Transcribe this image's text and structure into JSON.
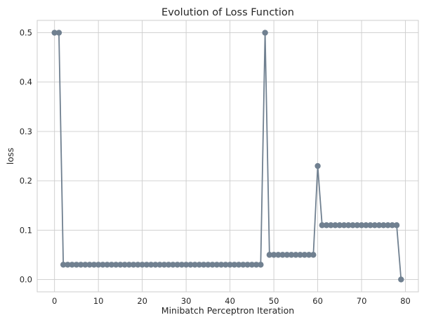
{
  "chart_data": {
    "type": "line",
    "title": "Evolution of Loss Function",
    "xlabel": "Minibatch Perceptron Iteration",
    "ylabel": "loss",
    "xlim": [
      -3.95,
      82.95
    ],
    "ylim": [
      -0.025,
      0.525
    ],
    "xticks": [
      0,
      10,
      20,
      30,
      40,
      50,
      60,
      70,
      80
    ],
    "yticks": [
      0.0,
      0.1,
      0.2,
      0.3,
      0.4,
      0.5
    ],
    "xtick_labels": [
      "0",
      "10",
      "20",
      "30",
      "40",
      "50",
      "60",
      "70",
      "80"
    ],
    "ytick_labels": [
      "0.0",
      "0.1",
      "0.2",
      "0.3",
      "0.4",
      "0.5"
    ],
    "grid": true,
    "marker": "circle",
    "series": [
      {
        "color": "#708090",
        "x": [
          0,
          1,
          2,
          3,
          4,
          5,
          6,
          7,
          8,
          9,
          10,
          11,
          12,
          13,
          14,
          15,
          16,
          17,
          18,
          19,
          20,
          21,
          22,
          23,
          24,
          25,
          26,
          27,
          28,
          29,
          30,
          31,
          32,
          33,
          34,
          35,
          36,
          37,
          38,
          39,
          40,
          41,
          42,
          43,
          44,
          45,
          46,
          47,
          48,
          49,
          50,
          51,
          52,
          53,
          54,
          55,
          56,
          57,
          58,
          59,
          60,
          61,
          62,
          63,
          64,
          65,
          66,
          67,
          68,
          69,
          70,
          71,
          72,
          73,
          74,
          75,
          76,
          77,
          78,
          79
        ],
        "values": [
          0.5,
          0.5,
          0.03,
          0.03,
          0.03,
          0.03,
          0.03,
          0.03,
          0.03,
          0.03,
          0.03,
          0.03,
          0.03,
          0.03,
          0.03,
          0.03,
          0.03,
          0.03,
          0.03,
          0.03,
          0.03,
          0.03,
          0.03,
          0.03,
          0.03,
          0.03,
          0.03,
          0.03,
          0.03,
          0.03,
          0.03,
          0.03,
          0.03,
          0.03,
          0.03,
          0.03,
          0.03,
          0.03,
          0.03,
          0.03,
          0.03,
          0.03,
          0.03,
          0.03,
          0.03,
          0.03,
          0.03,
          0.03,
          0.5,
          0.05,
          0.05,
          0.05,
          0.05,
          0.05,
          0.05,
          0.05,
          0.05,
          0.05,
          0.05,
          0.05,
          0.23,
          0.11,
          0.11,
          0.11,
          0.11,
          0.11,
          0.11,
          0.11,
          0.11,
          0.11,
          0.11,
          0.11,
          0.11,
          0.11,
          0.11,
          0.11,
          0.11,
          0.11,
          0.11,
          0.0
        ]
      }
    ]
  },
  "colors": {
    "background": "#ffffff",
    "grid": "#cccccc",
    "axes_edge": "#cccccc",
    "series": "#708090"
  }
}
